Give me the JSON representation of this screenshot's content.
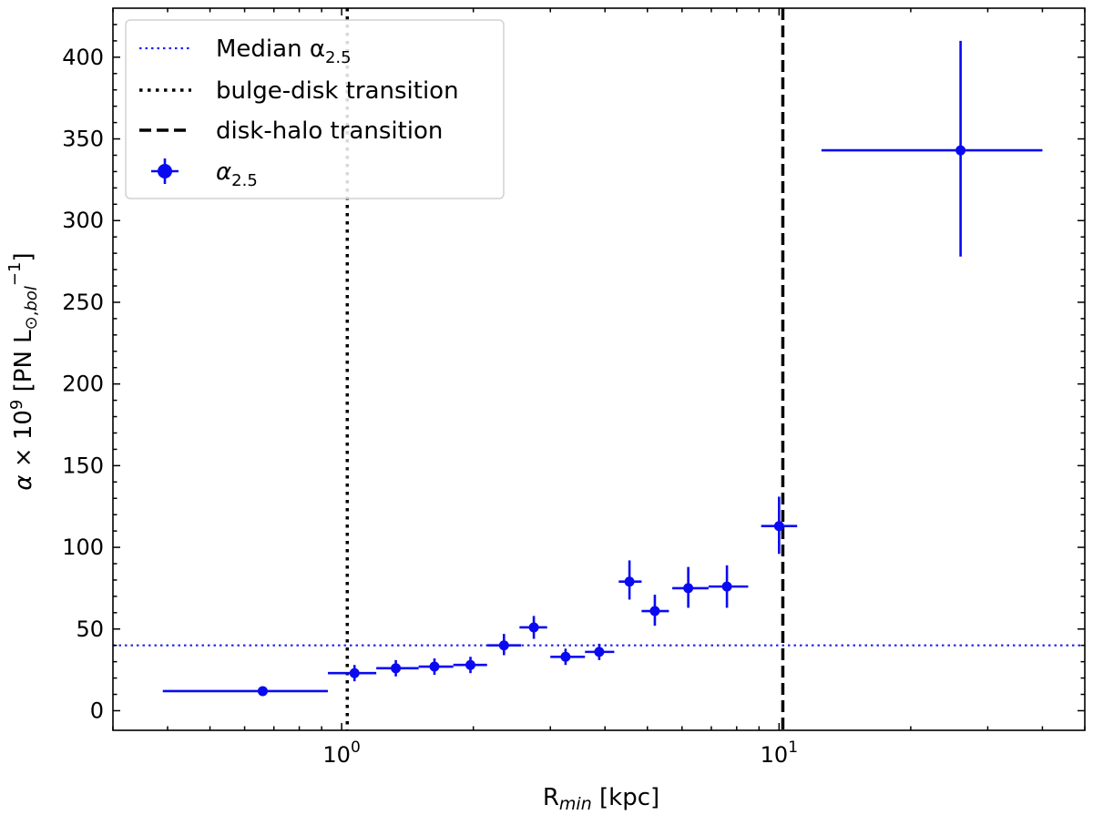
{
  "chart_data": {
    "type": "scatter",
    "xscale": "log",
    "xlim": [
      0.3,
      50
    ],
    "ylim": [
      -12,
      430
    ],
    "xlabel": "R_min [kpc]",
    "ylabel": "α × 10^9 [PN L⊙,bol^-1]",
    "x_ticks": [
      {
        "value": 1,
        "base": "10",
        "exp": "0"
      },
      {
        "value": 10,
        "base": "10",
        "exp": "1"
      }
    ],
    "y_ticks": [
      0,
      50,
      100,
      150,
      200,
      250,
      300,
      350,
      400
    ],
    "median_line": {
      "y": 40,
      "color": "#1f1fff",
      "style": "dotted"
    },
    "bulge_disk_transition_x": 1.03,
    "disk_halo_transition_x": 10.2,
    "series": [
      {
        "name": "α2.5",
        "color": "#0a0af0",
        "points": [
          {
            "x": 0.66,
            "y": 12,
            "xlo": 0.39,
            "xhi": 0.93,
            "ylo": 11,
            "yhi": 14
          },
          {
            "x": 1.07,
            "y": 23,
            "xlo": 0.93,
            "xhi": 1.2,
            "ylo": 18,
            "yhi": 28
          },
          {
            "x": 1.33,
            "y": 26,
            "xlo": 1.2,
            "xhi": 1.5,
            "ylo": 21,
            "yhi": 31
          },
          {
            "x": 1.63,
            "y": 27,
            "xlo": 1.5,
            "xhi": 1.8,
            "ylo": 22,
            "yhi": 32
          },
          {
            "x": 1.97,
            "y": 28,
            "xlo": 1.8,
            "xhi": 2.15,
            "ylo": 23,
            "yhi": 33
          },
          {
            "x": 2.35,
            "y": 40,
            "xlo": 2.15,
            "xhi": 2.57,
            "ylo": 34,
            "yhi": 47
          },
          {
            "x": 2.75,
            "y": 51,
            "xlo": 2.55,
            "xhi": 2.95,
            "ylo": 44,
            "yhi": 58
          },
          {
            "x": 3.25,
            "y": 33,
            "xlo": 3.0,
            "xhi": 3.6,
            "ylo": 28,
            "yhi": 38
          },
          {
            "x": 3.88,
            "y": 36,
            "xlo": 3.6,
            "xhi": 4.2,
            "ylo": 31,
            "yhi": 41
          },
          {
            "x": 4.55,
            "y": 79,
            "xlo": 4.3,
            "xhi": 4.85,
            "ylo": 68,
            "yhi": 92
          },
          {
            "x": 5.2,
            "y": 61,
            "xlo": 4.85,
            "xhi": 5.6,
            "ylo": 52,
            "yhi": 71
          },
          {
            "x": 6.2,
            "y": 75,
            "xlo": 5.7,
            "xhi": 6.9,
            "ylo": 63,
            "yhi": 88
          },
          {
            "x": 7.6,
            "y": 76,
            "xlo": 6.9,
            "xhi": 8.5,
            "ylo": 63,
            "yhi": 89
          },
          {
            "x": 10.0,
            "y": 113,
            "xlo": 9.1,
            "xhi": 11.0,
            "ylo": 96,
            "yhi": 131
          },
          {
            "x": 26.0,
            "y": 343,
            "xlo": 12.5,
            "xhi": 40.0,
            "ylo": 278,
            "yhi": 410
          }
        ]
      }
    ],
    "legend": {
      "position": "top-left",
      "entries": [
        {
          "label": "Median α",
          "sub": "2.5",
          "style": "dotted",
          "color": "#1f1fff"
        },
        {
          "label": "bulge-disk transition",
          "sub": "",
          "style": "dotted-thick",
          "color": "#000000"
        },
        {
          "label": "disk-halo transition",
          "sub": "",
          "style": "dashed",
          "color": "#000000"
        },
        {
          "label": "α",
          "sub": "2.5",
          "style": "errorbar",
          "color": "#0a0af0"
        }
      ]
    }
  }
}
